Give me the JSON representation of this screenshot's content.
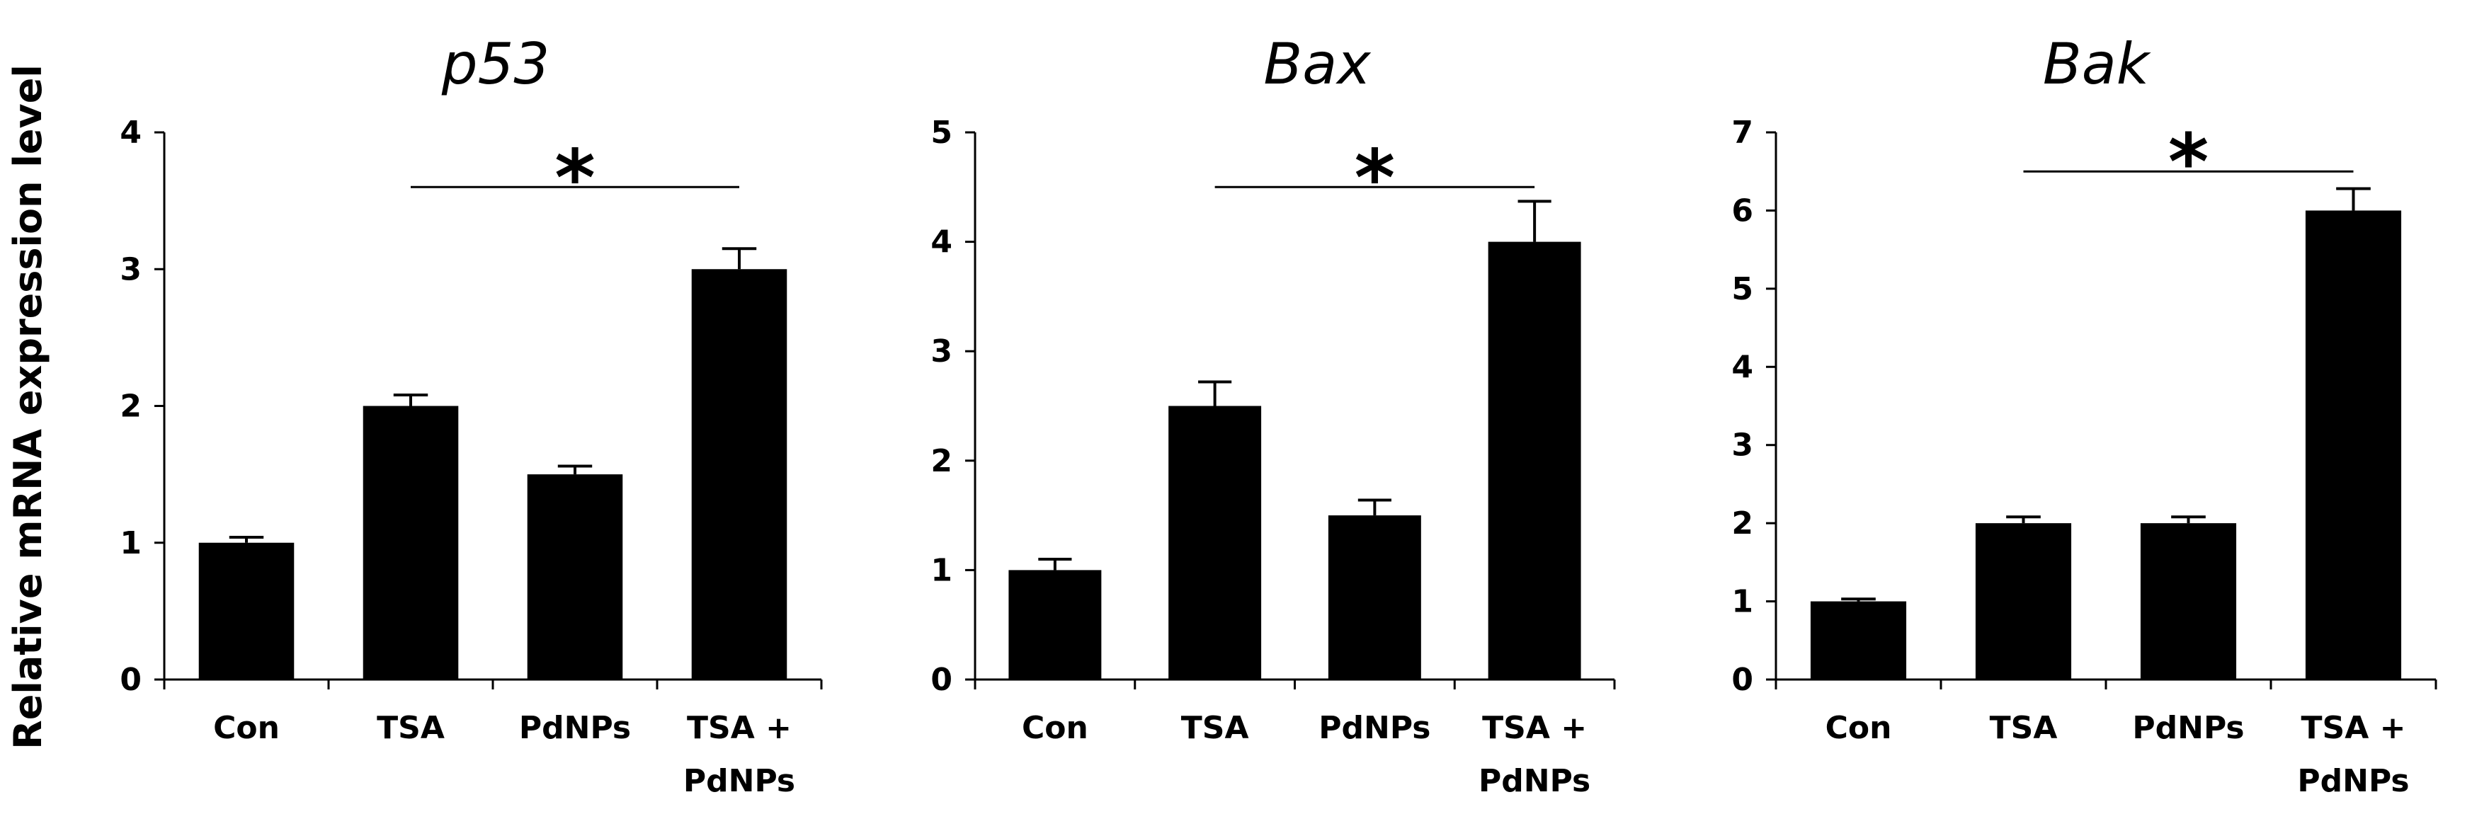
{
  "y_axis_label": "Relative mRNA expression level",
  "chart_data": [
    {
      "type": "bar",
      "title": "p53",
      "categories": [
        "Con",
        "TSA",
        "PdNPs",
        "TSA + PdNPs"
      ],
      "category_lines": [
        [
          "Con"
        ],
        [
          "TSA"
        ],
        [
          "PdNPs"
        ],
        [
          "TSA +",
          "PdNPs"
        ]
      ],
      "values": [
        1.0,
        2.0,
        1.5,
        3.0
      ],
      "errors": [
        0.04,
        0.08,
        0.06,
        0.15
      ],
      "ylim": [
        0,
        4
      ],
      "yticks": [
        0,
        1,
        2,
        3,
        4
      ],
      "significance": {
        "from": 1,
        "to": 3,
        "level": 3.6,
        "label": "*"
      }
    },
    {
      "type": "bar",
      "title": "Bax",
      "categories": [
        "Con",
        "TSA",
        "PdNPs",
        "TSA + PdNPs"
      ],
      "category_lines": [
        [
          "Con"
        ],
        [
          "TSA"
        ],
        [
          "PdNPs"
        ],
        [
          "TSA +",
          "PdNPs"
        ]
      ],
      "values": [
        1.0,
        2.5,
        1.5,
        4.0
      ],
      "errors": [
        0.1,
        0.22,
        0.14,
        0.37
      ],
      "ylim": [
        0,
        5
      ],
      "yticks": [
        0,
        1,
        2,
        3,
        4,
        5
      ],
      "significance": {
        "from": 1,
        "to": 3,
        "level": 4.5,
        "label": "*"
      }
    },
    {
      "type": "bar",
      "title": "Bak",
      "categories": [
        "Con",
        "TSA",
        "PdNPs",
        "TSA + PdNPs"
      ],
      "category_lines": [
        [
          "Con"
        ],
        [
          "TSA"
        ],
        [
          "PdNPs"
        ],
        [
          "TSA +",
          "PdNPs"
        ]
      ],
      "values": [
        1.0,
        2.0,
        2.0,
        6.0
      ],
      "errors": [
        0.03,
        0.08,
        0.08,
        0.28
      ],
      "ylim": [
        0,
        7
      ],
      "yticks": [
        0,
        1,
        2,
        3,
        4,
        5,
        6,
        7
      ],
      "significance": {
        "from": 1,
        "to": 3,
        "level": 6.5,
        "label": "*"
      }
    }
  ]
}
